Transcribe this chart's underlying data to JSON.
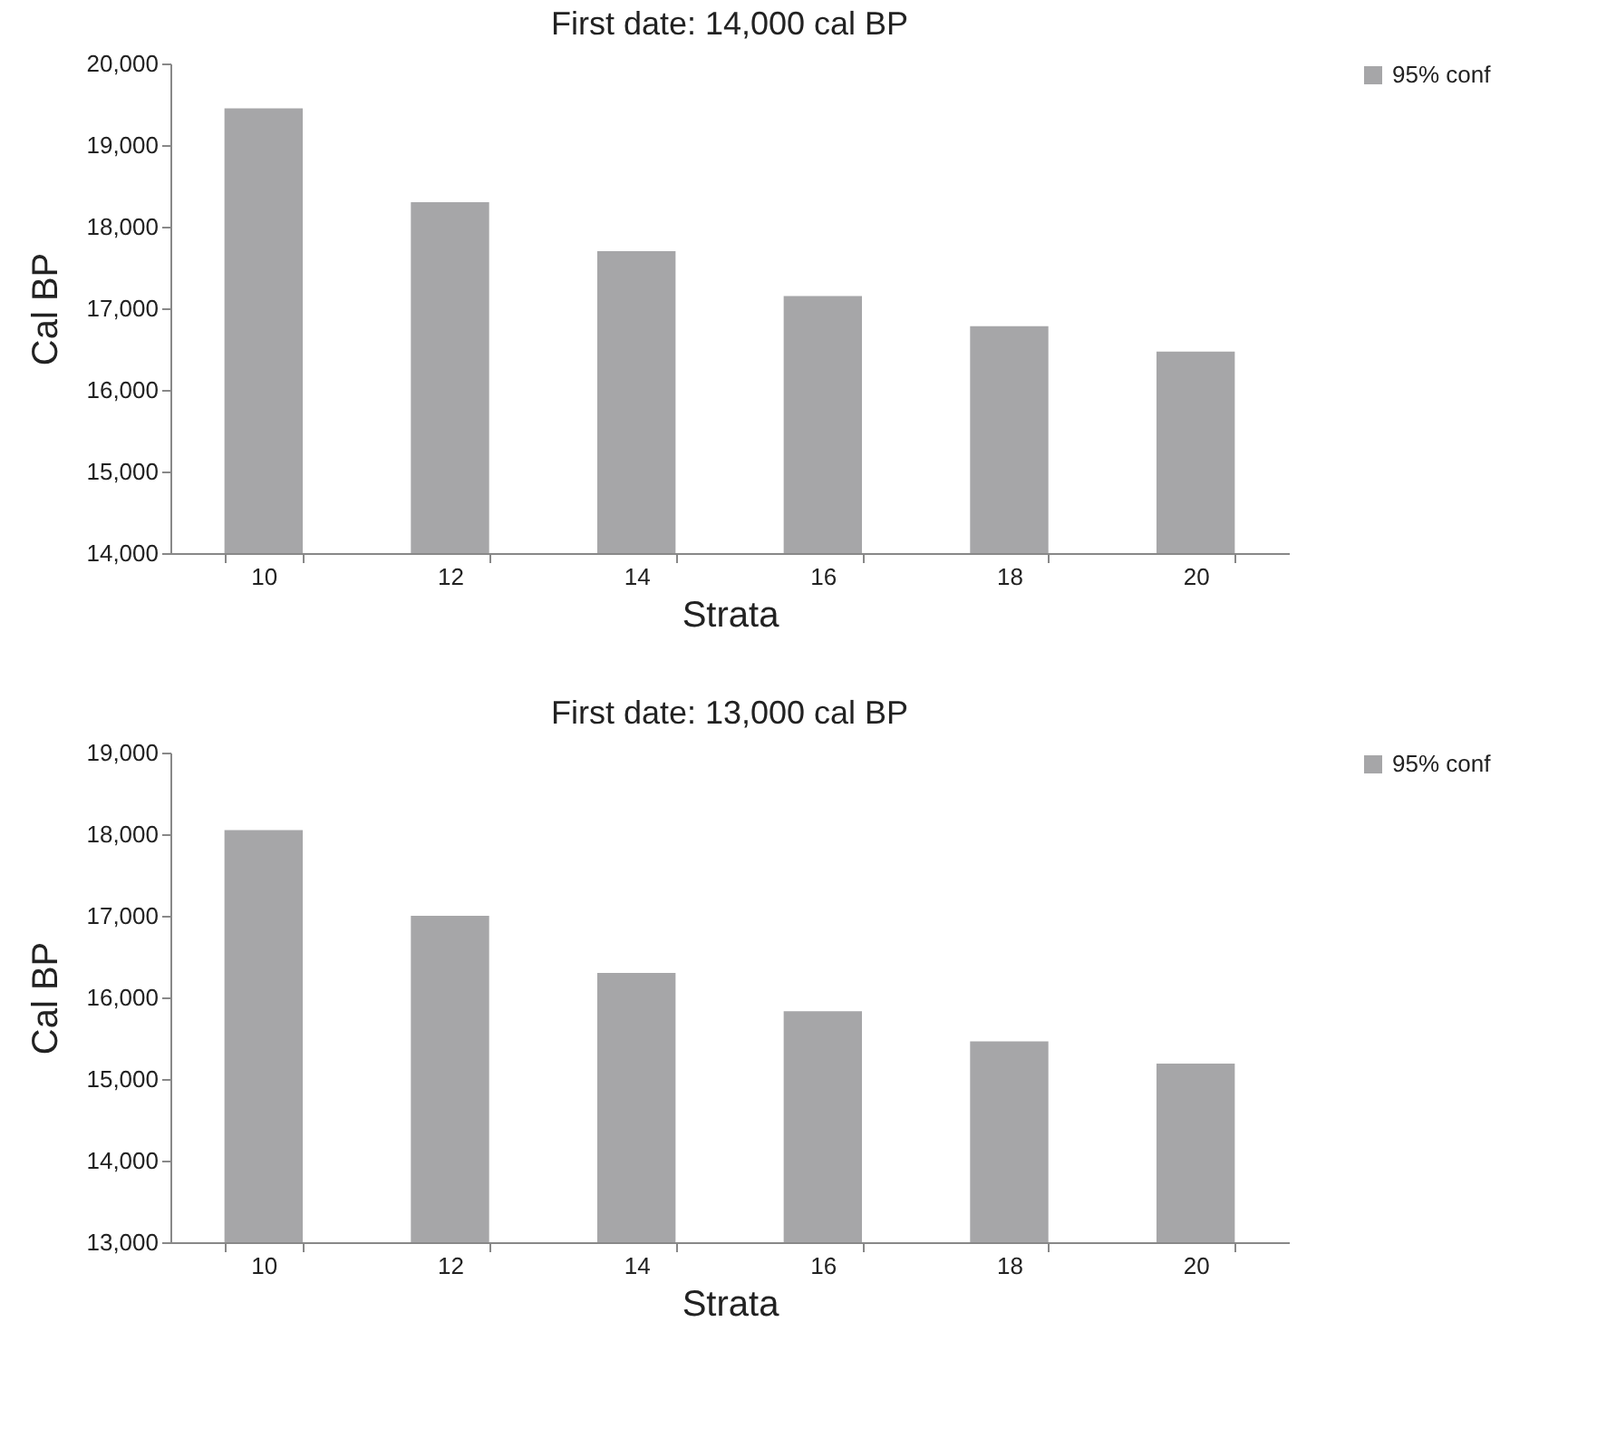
{
  "chart_data": [
    {
      "type": "bar",
      "title": "First date: 14,000 cal BP",
      "xlabel": "Strata",
      "ylabel": "Cal BP",
      "categories": [
        "10",
        "12",
        "14",
        "16",
        "18",
        "20"
      ],
      "series": [
        {
          "name": "95% conf",
          "color": "#a6a6a8",
          "values": [
            19450,
            18300,
            17700,
            17150,
            16780,
            16470
          ]
        }
      ],
      "ylim": [
        14000,
        20000
      ],
      "yticks": [
        {
          "value": 14000,
          "label": "14,000"
        },
        {
          "value": 15000,
          "label": "15,000"
        },
        {
          "value": 16000,
          "label": "16,000"
        },
        {
          "value": 17000,
          "label": "17,000"
        },
        {
          "value": 18000,
          "label": "18,000"
        },
        {
          "value": 19000,
          "label": "19,000"
        },
        {
          "value": 20000,
          "label": "20,000"
        }
      ],
      "grid": false,
      "legend": "right"
    },
    {
      "type": "bar",
      "title": "First date: 13,000 cal BP",
      "xlabel": "Strata",
      "ylabel": "Cal BP",
      "categories": [
        "10",
        "12",
        "14",
        "16",
        "18",
        "20"
      ],
      "series": [
        {
          "name": "95% conf",
          "color": "#a6a6a8",
          "values": [
            18050,
            17000,
            16300,
            15830,
            15460,
            15190
          ]
        }
      ],
      "ylim": [
        13000,
        19000
      ],
      "yticks": [
        {
          "value": 13000,
          "label": "13,000"
        },
        {
          "value": 14000,
          "label": "14,000"
        },
        {
          "value": 15000,
          "label": "15,000"
        },
        {
          "value": 16000,
          "label": "16,000"
        },
        {
          "value": 17000,
          "label": "17,000"
        },
        {
          "value": 18000,
          "label": "18,000"
        },
        {
          "value": 19000,
          "label": "19,000"
        }
      ],
      "grid": false,
      "legend": "right"
    }
  ]
}
